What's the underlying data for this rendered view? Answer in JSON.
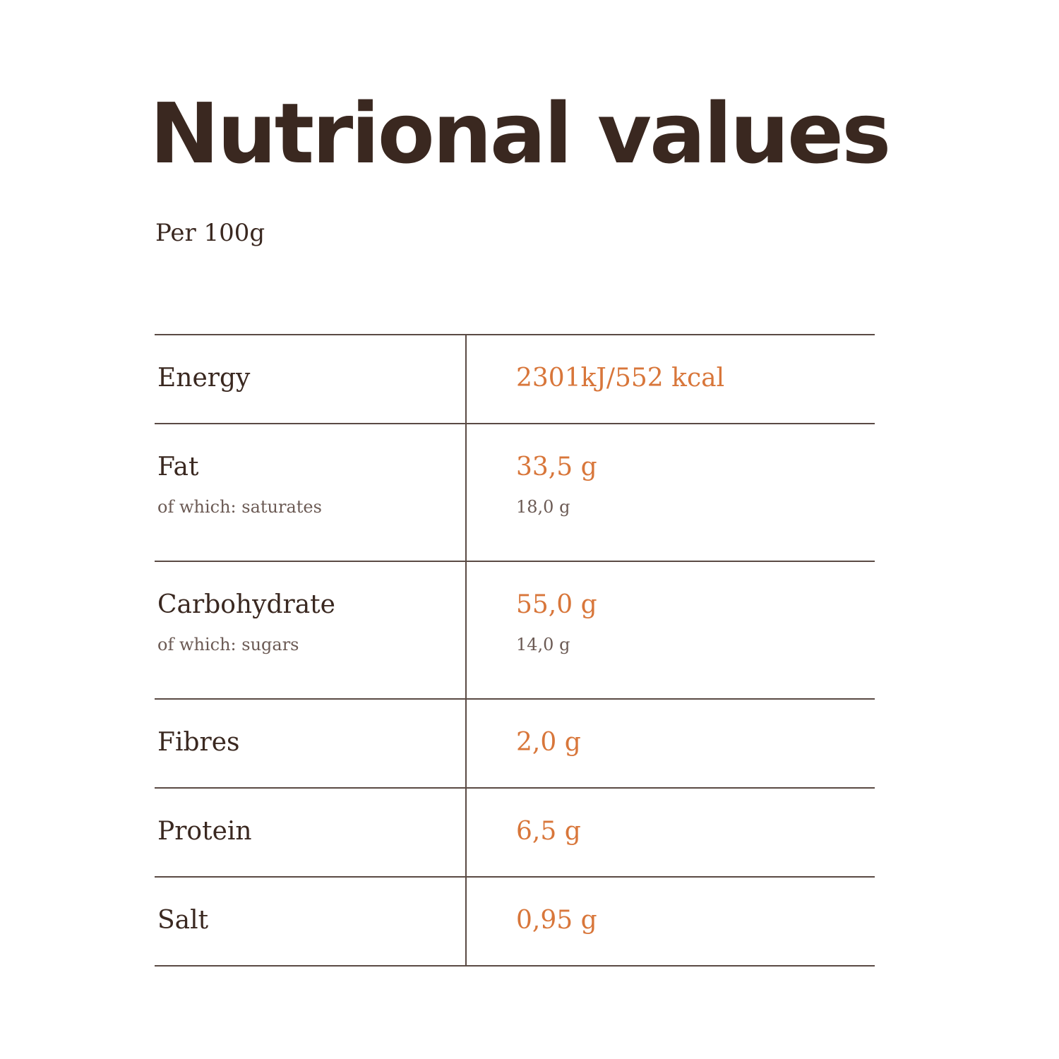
{
  "header": {
    "title": "Nutrional values",
    "subtitle": "Per 100g"
  },
  "table": {
    "rows": [
      {
        "label": "Energy",
        "value": "2301kJ/552 kcal"
      },
      {
        "label": "Fat",
        "value": "33,5 g",
        "sub_label": "of which: saturates",
        "sub_value": "18,0 g"
      },
      {
        "label": "Carbohydrate",
        "value": "55,0 g",
        "sub_label": "of which: sugars",
        "sub_value": "14,0 g"
      },
      {
        "label": "Fibres",
        "value": "2,0 g"
      },
      {
        "label": "Protein",
        "value": "6,5 g"
      },
      {
        "label": "Salt",
        "value": "0,95 g"
      }
    ]
  }
}
